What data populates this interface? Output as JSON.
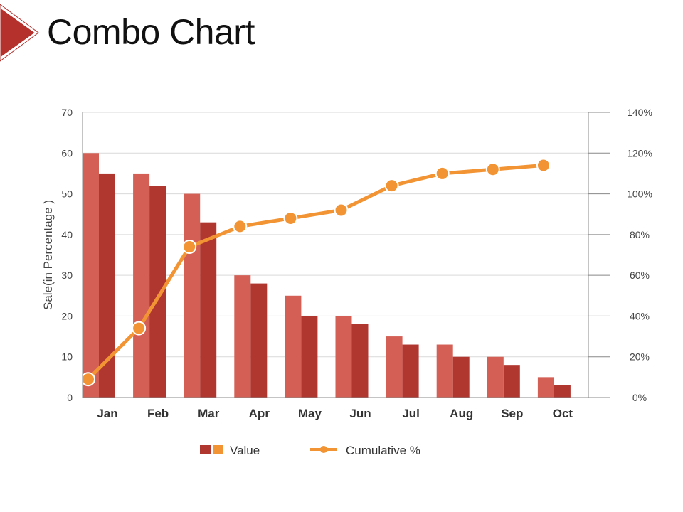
{
  "page": {
    "title": "Combo Chart"
  },
  "colors": {
    "value_light": "#d45f55",
    "value_dark": "#b03630",
    "cumulative": "#f39434",
    "accent": "#b5312c",
    "grid": "#d9d9d9",
    "axis": "#888888"
  },
  "chart_data": {
    "type": "bar",
    "combo": "bar+line",
    "title": "",
    "categories": [
      "Jan",
      "Feb",
      "Mar",
      "Apr",
      "May",
      "Jun",
      "Jul",
      "Aug",
      "Sep",
      "Oct"
    ],
    "ylabel": "Sale(in Percentage )",
    "ylim": [
      0,
      70
    ],
    "yticks": [
      "0",
      "10",
      "20",
      "30",
      "40",
      "50",
      "60",
      "70"
    ],
    "y2lim": [
      0,
      140
    ],
    "y2ticks": [
      "0%",
      "20%",
      "40%",
      "60%",
      "80%",
      "100%",
      "120%",
      "140%"
    ],
    "grid": true,
    "legend_position": "bottom",
    "bar_series": [
      {
        "values": [
          60,
          55,
          50,
          30,
          25,
          20,
          15,
          13,
          10,
          5
        ],
        "axis": "left"
      },
      {
        "values": [
          55,
          52,
          43,
          28,
          20,
          18,
          13,
          10,
          8,
          3
        ],
        "axis": "left"
      }
    ],
    "line_series": [
      {
        "values": [
          9,
          34,
          74,
          84,
          88,
          92,
          104,
          110,
          112,
          114
        ],
        "axis": "right",
        "unit": "%"
      }
    ],
    "legend": [
      {
        "label": "Value",
        "kind": "bars"
      },
      {
        "label": "Cumulative %",
        "kind": "line"
      }
    ]
  }
}
